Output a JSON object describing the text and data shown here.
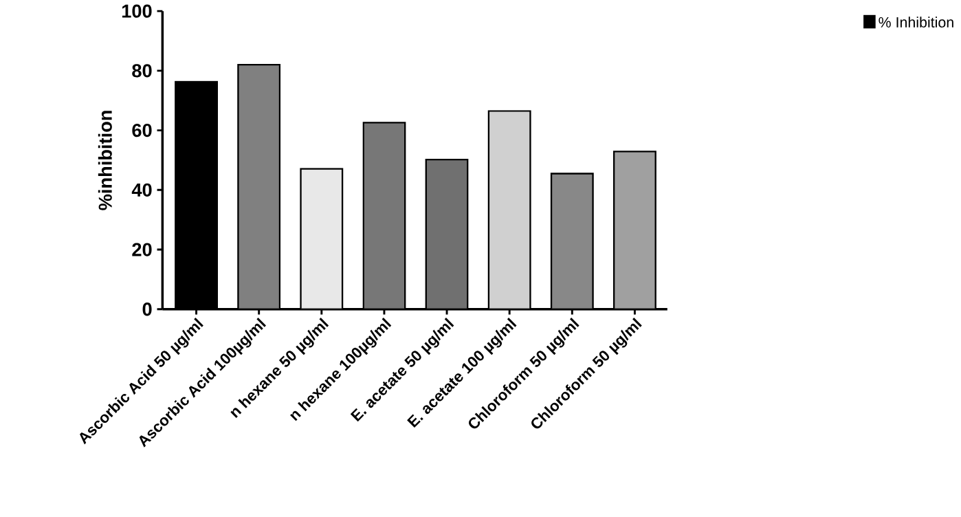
{
  "chart_data": {
    "type": "bar",
    "ylabel": "%inhibition",
    "categories": [
      "Ascorbic Acid 50 µg/ml",
      "Ascorbic Acid 100µg/ml",
      "n hexane 50 µg/ml",
      "n hexane 100µg/ml",
      "E. acetate 50 µg/ml",
      "E. acetate 100 µg/ml",
      "Chloroform 50 µg/ml",
      "Chloroform 50 µg/ml"
    ],
    "series": [
      {
        "name": "% Inhibition",
        "color": "#000000",
        "values": [
          76.3,
          82.0,
          47.1,
          62.6,
          50.2,
          66.5,
          45.5,
          52.9
        ],
        "colors": [
          "#000000",
          "#808080",
          "#e8e8e8",
          "#777777",
          "#707070",
          "#d0d0d0",
          "#888888",
          "#a0a0a0"
        ]
      }
    ],
    "ylim": [
      0,
      100
    ],
    "yticks": [
      0,
      20,
      40,
      60,
      80,
      100
    ],
    "grid": false,
    "legend": "top right"
  }
}
